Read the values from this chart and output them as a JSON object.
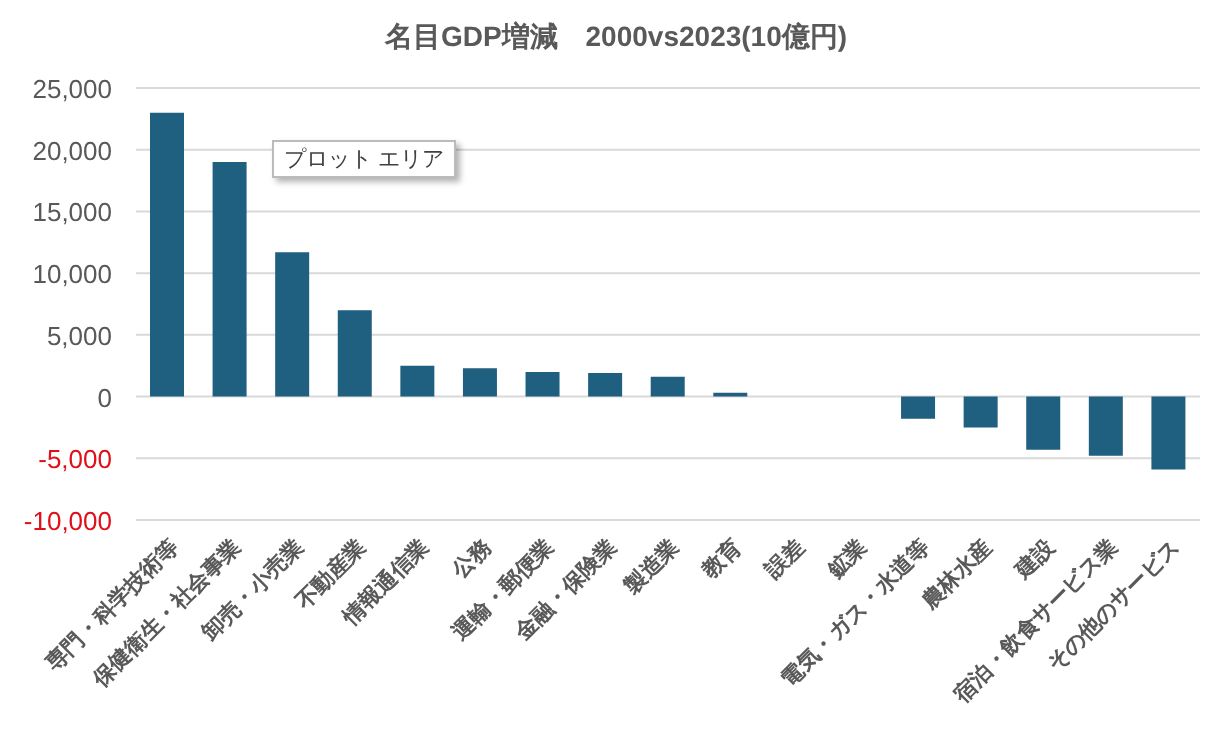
{
  "chart_data": {
    "type": "bar",
    "title": "名目GDP増減　2000vs2023(10億円)",
    "categories": [
      "専門・科学技術等",
      "保健衛生・社会事業",
      "卸売・小売業",
      "不動産業",
      "情報通信業",
      "公務",
      "運輸・郵便業",
      "金融・保険業",
      "製造業",
      "教育",
      "誤差",
      "鉱業",
      "電気・ガス・水道等",
      "農林水産",
      "建設",
      "宿泊・飲食サービス業",
      "その他のサービス"
    ],
    "values": [
      23000,
      19000,
      11700,
      7000,
      2500,
      2300,
      2000,
      1900,
      1600,
      300,
      0,
      0,
      -1800,
      -2500,
      -4300,
      -4800,
      -5900
    ],
    "color": "#1f5f7f",
    "ylim": [
      -10000,
      25000
    ],
    "yticks": [
      {
        "value": -10000,
        "label": "-10,000"
      },
      {
        "value": -5000,
        "label": "-5,000"
      },
      0,
      {
        "value": 5000,
        "label": "5,000"
      },
      {
        "value": 10000,
        "label": "10,000"
      },
      {
        "value": 15000,
        "label": "15,000"
      },
      {
        "value": 20000,
        "label": "20,000"
      },
      {
        "value": 25000,
        "label": "25,000"
      }
    ],
    "grid": "y",
    "annotations": [
      "プロット エリア"
    ]
  }
}
